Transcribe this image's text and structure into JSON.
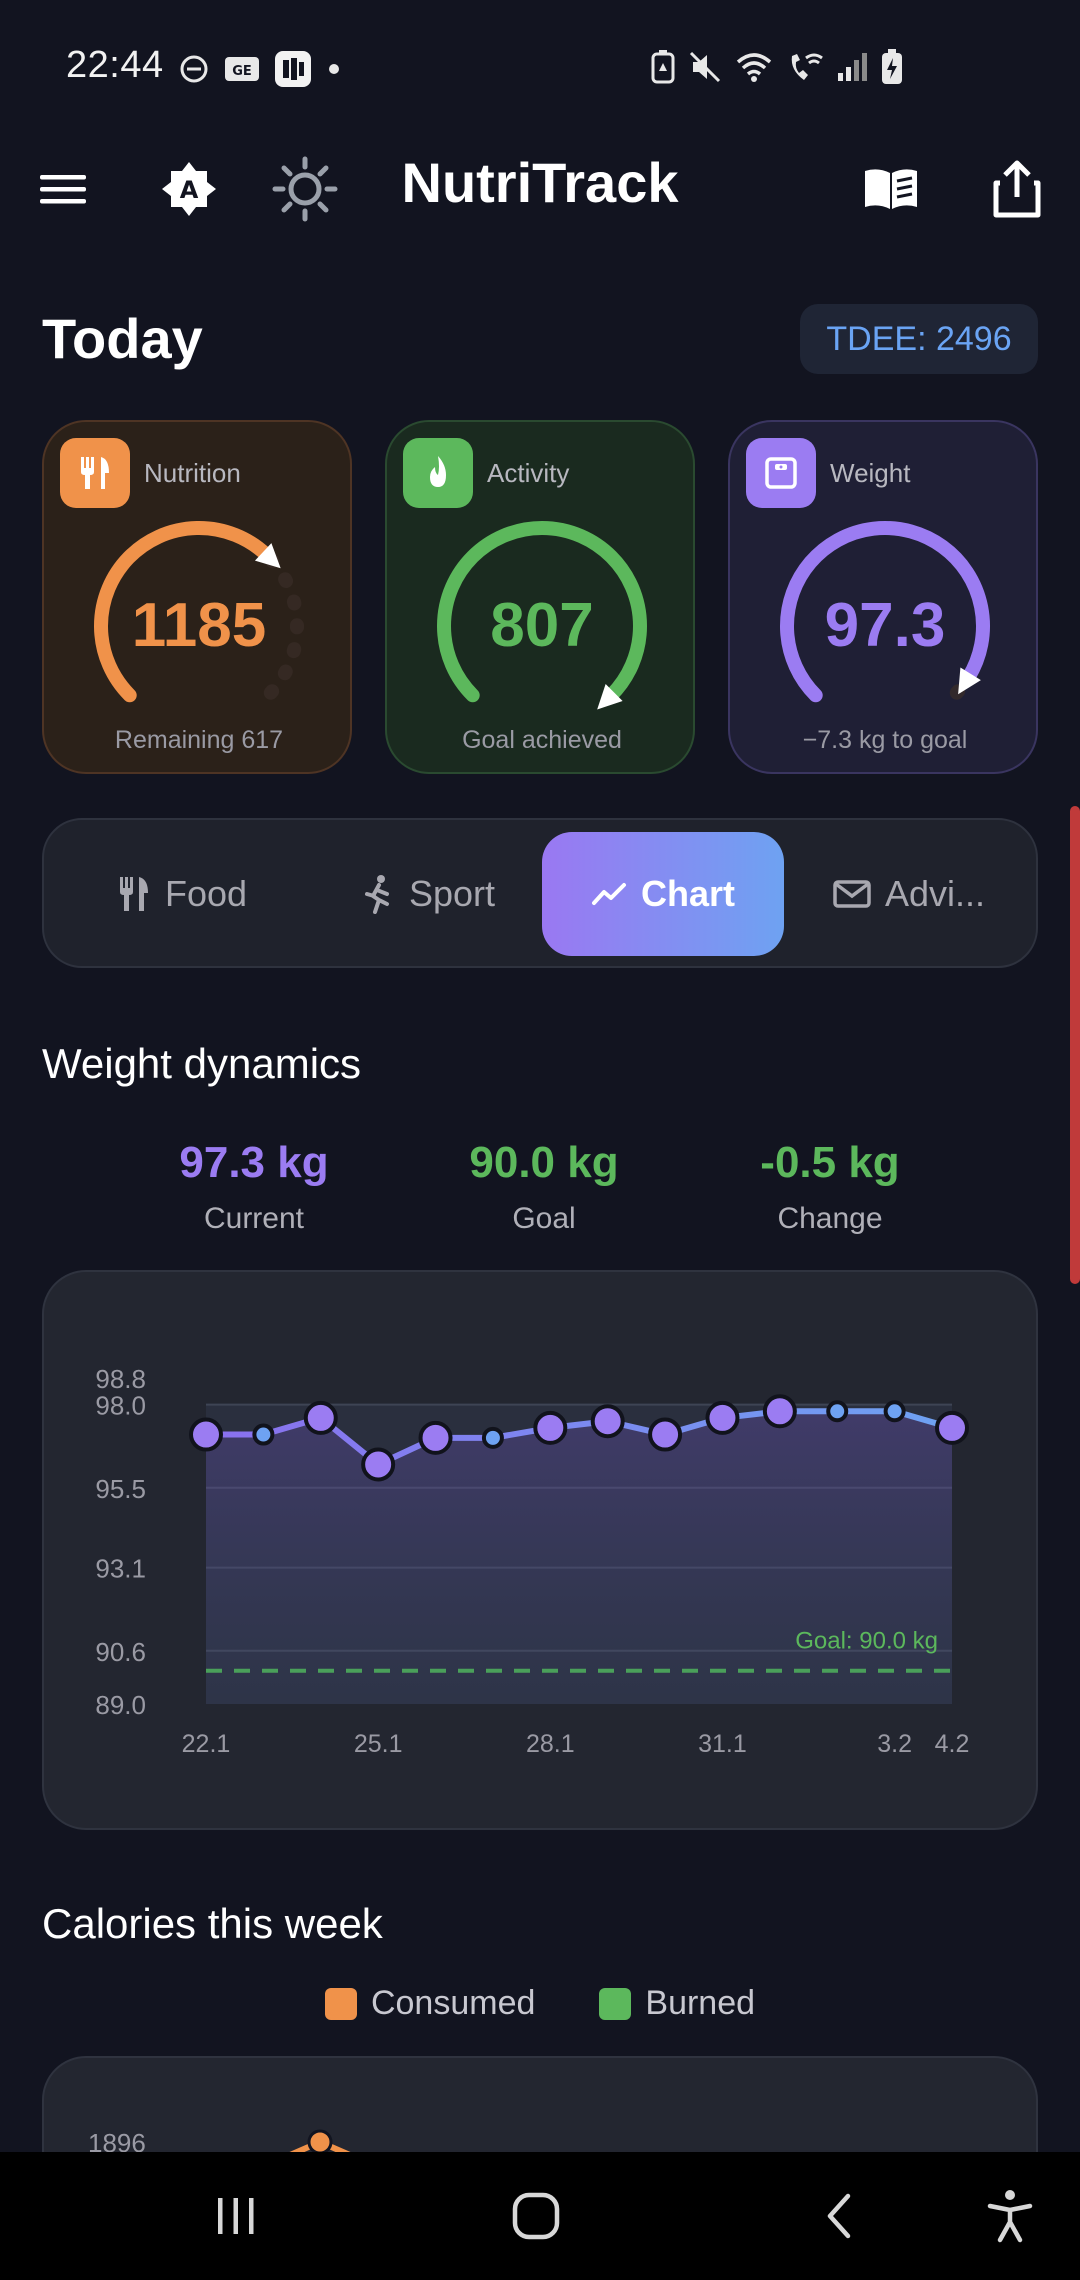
{
  "status_bar": {
    "time": "22:44"
  },
  "app": {
    "title": "NutriTrack"
  },
  "header": {
    "title": "Today",
    "tdee": "TDEE: 2496"
  },
  "cards": {
    "nutrition": {
      "label": "Nutrition",
      "value": "1185",
      "sub": "Remaining 617",
      "color": "#f0924a",
      "progress": 0.66
    },
    "activity": {
      "label": "Activity",
      "value": "807",
      "sub": "Goal achieved",
      "color": "#5cb85c",
      "progress": 1.0
    },
    "weight": {
      "label": "Weight",
      "value": "97.3",
      "sub": "−7.3 kg to goal",
      "color": "#9b7cf2",
      "progress": 0.95
    }
  },
  "tabs": [
    {
      "label": "Food",
      "icon": "fork-knife-icon",
      "active": false
    },
    {
      "label": "Sport",
      "icon": "running-icon",
      "active": false
    },
    {
      "label": "Chart",
      "icon": "trend-line-icon",
      "active": true
    },
    {
      "label": "Advi...",
      "icon": "envelope-icon",
      "active": false
    }
  ],
  "weight_section": {
    "title": "Weight dynamics",
    "stats": [
      {
        "value": "97.3 kg",
        "label": "Current",
        "color": "#9b7cf2"
      },
      {
        "value": "90.0 kg",
        "label": "Goal",
        "color": "#5cb85c"
      },
      {
        "value": "-0.5 kg",
        "label": "Change",
        "color": "#5cb85c"
      }
    ]
  },
  "chart_data": {
    "type": "area",
    "title": "",
    "xlabel": "",
    "ylabel": "",
    "ylim": [
      89.0,
      98.8
    ],
    "yticks": [
      "98.8",
      "98.0",
      "95.5",
      "93.1",
      "90.6",
      "89.0"
    ],
    "ytick_values": [
      98.8,
      98.0,
      95.5,
      93.1,
      90.6,
      89.0
    ],
    "x_labels": [
      "22.1",
      "25.1",
      "28.1",
      "31.1",
      "3.2",
      "4.2"
    ],
    "x_label_index": [
      0,
      3,
      6,
      9,
      12,
      13
    ],
    "series": [
      {
        "values": [
          97.1,
          97.1,
          97.6,
          96.2,
          97.0,
          97.0,
          97.3,
          97.5,
          97.1,
          97.6,
          97.8,
          97.8,
          97.8,
          97.3
        ]
      }
    ],
    "major_points": [
      true,
      false,
      true,
      true,
      true,
      false,
      true,
      true,
      true,
      true,
      true,
      false,
      false,
      true
    ],
    "goal_line": {
      "value": 90.0,
      "label": "Goal: 90.0 kg"
    },
    "grid": true
  },
  "calories_section": {
    "title": "Calories this week",
    "legend": [
      {
        "label": "Consumed",
        "color": "#f0924a"
      },
      {
        "label": "Burned",
        "color": "#5cb85c"
      }
    ],
    "first_tick": "1896"
  }
}
